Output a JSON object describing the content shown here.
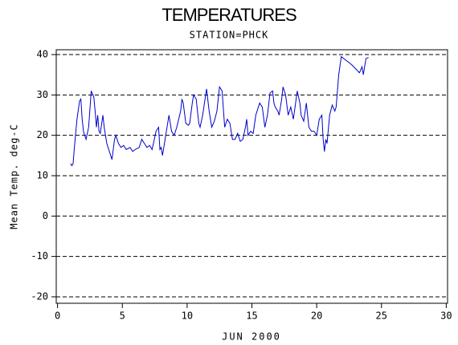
{
  "chart_data": {
    "type": "line",
    "title": "TEMPERATURES",
    "subtitle": "STATION=PHCK",
    "x_label": "JUN 2000",
    "y_label": "Mean Temp. deg-C",
    "xlim": [
      -0.1,
      30.1
    ],
    "ylim": [
      -21.6,
      41.2
    ],
    "xticks": [
      0,
      5,
      10,
      15,
      20,
      25,
      30
    ],
    "yticks": [
      -20,
      -10,
      0,
      10,
      20,
      30,
      40
    ],
    "grid": true,
    "series": [
      {
        "color": "#0000cc",
        "x": [
          1.0,
          1.1,
          1.2,
          1.3,
          1.5,
          1.7,
          1.8,
          1.9,
          2.0,
          2.2,
          2.4,
          2.6,
          2.8,
          2.9,
          3.0,
          3.1,
          3.2,
          3.3,
          3.5,
          3.6,
          3.8,
          3.9,
          4.1,
          4.2,
          4.4,
          4.5,
          4.7,
          4.9,
          5.1,
          5.3,
          5.6,
          5.8,
          6.0,
          6.3,
          6.5,
          6.7,
          6.9,
          7.1,
          7.3,
          7.6,
          7.8,
          7.9,
          8.0,
          8.1,
          8.3,
          8.6,
          8.8,
          9.0,
          9.2,
          9.5,
          9.6,
          9.7,
          9.9,
          10.1,
          10.2,
          10.4,
          10.5,
          10.7,
          10.9,
          11.0,
          11.2,
          11.5,
          11.7,
          11.9,
          12.1,
          12.3,
          12.5,
          12.7,
          12.9,
          13.1,
          13.3,
          13.5,
          13.7,
          13.9,
          14.1,
          14.3,
          14.5,
          14.6,
          14.7,
          14.9,
          15.1,
          15.3,
          15.5,
          15.6,
          15.8,
          16.0,
          16.2,
          16.4,
          16.6,
          16.7,
          16.8,
          17.0,
          17.1,
          17.3,
          17.4,
          17.6,
          17.8,
          18.0,
          18.2,
          18.5,
          18.7,
          18.8,
          19.0,
          19.2,
          19.4,
          19.6,
          19.8,
          20.0,
          20.2,
          20.4,
          20.5,
          20.6,
          20.7,
          20.8,
          21.0,
          21.2,
          21.4,
          21.5,
          21.7,
          21.9,
          22.3,
          22.7,
          23.0,
          23.3,
          23.5,
          23.6,
          23.8,
          24.0
        ],
        "values": [
          13,
          12.5,
          13,
          17,
          24,
          28.5,
          29,
          24,
          21,
          19,
          22,
          31,
          29.5,
          26,
          22,
          25,
          21,
          20.5,
          25,
          22,
          18,
          17,
          15,
          14,
          19,
          20,
          18,
          17,
          17.5,
          16.5,
          17,
          16,
          16.5,
          17,
          19,
          18,
          17,
          17.5,
          16.5,
          21,
          22,
          16.5,
          17,
          15,
          19,
          25,
          21,
          20,
          22,
          26,
          29,
          28,
          23,
          22.5,
          23,
          28,
          30,
          29,
          23,
          22,
          25,
          31.5,
          26,
          22,
          23.5,
          26,
          32,
          31,
          22,
          24,
          23,
          19,
          19,
          20.5,
          18.5,
          19,
          22,
          24,
          20,
          21,
          20.5,
          25,
          27,
          28,
          27,
          22,
          25,
          30.5,
          31,
          28,
          27,
          26,
          25,
          29,
          32,
          30,
          25,
          27,
          24,
          31,
          28,
          25,
          23.5,
          28,
          22,
          21,
          21,
          20,
          24,
          25,
          19,
          16,
          19,
          18,
          25,
          27.5,
          26,
          27,
          35,
          39.5,
          38.5,
          37.5,
          36.5,
          35.5,
          37,
          35,
          39,
          39.3
        ]
      }
    ]
  }
}
